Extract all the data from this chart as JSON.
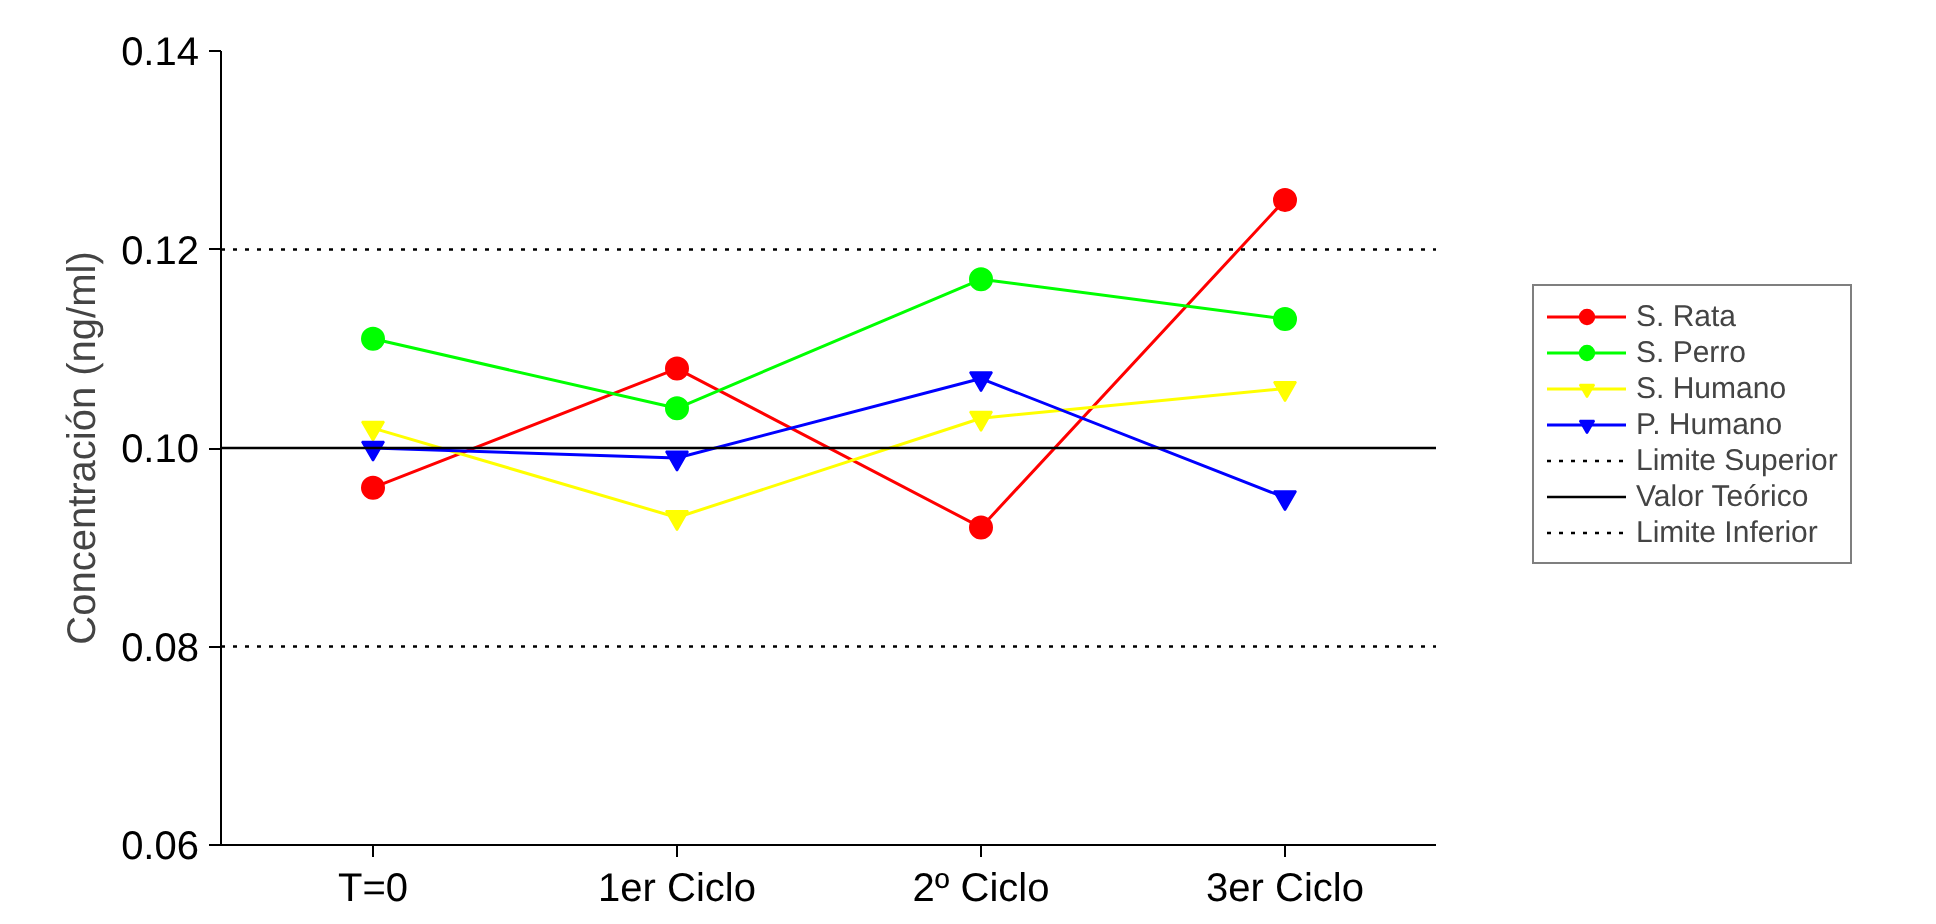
{
  "chart_data": {
    "type": "line",
    "ylabel": "Concentración (ng/ml)",
    "categories": [
      "T=0",
      "1er Ciclo",
      "2º Ciclo",
      "3er Ciclo"
    ],
    "ylim": [
      0.06,
      0.14
    ],
    "yticks": [
      0.06,
      0.08,
      {
        "value": 0.1,
        "label": "0.10"
      },
      0.12,
      0.14
    ],
    "grid": false,
    "legend": "right",
    "line_style": "solid",
    "series": [
      {
        "name": "S. Rata",
        "color": "#ff0000",
        "marker": "circle",
        "values": [
          0.096,
          0.108,
          0.092,
          0.125
        ]
      },
      {
        "name": "S. Perro",
        "color": "#00ff00",
        "marker": "circle",
        "values": [
          0.111,
          0.104,
          0.117,
          0.113
        ]
      },
      {
        "name": "S. Humano",
        "color": "#ffff00",
        "marker": "triangle",
        "values": [
          0.102,
          0.093,
          0.103,
          0.106
        ]
      },
      {
        "name": "P. Humano",
        "color": "#0000ff",
        "marker": "triangle",
        "values": [
          0.1,
          0.099,
          0.107,
          0.095
        ]
      }
    ],
    "ref_lines": [
      {
        "axis": "y",
        "value": 0.12,
        "label": "Limite Superior",
        "color": "#000000",
        "line_style": "dotted"
      },
      {
        "axis": "y",
        "value": 0.1,
        "label": "Valor Teórico",
        "color": "#000000",
        "line_style": "solid"
      },
      {
        "axis": "y",
        "value": 0.08,
        "label": "Limite Inferior",
        "color": "#000000",
        "line_style": "dotted"
      }
    ]
  }
}
